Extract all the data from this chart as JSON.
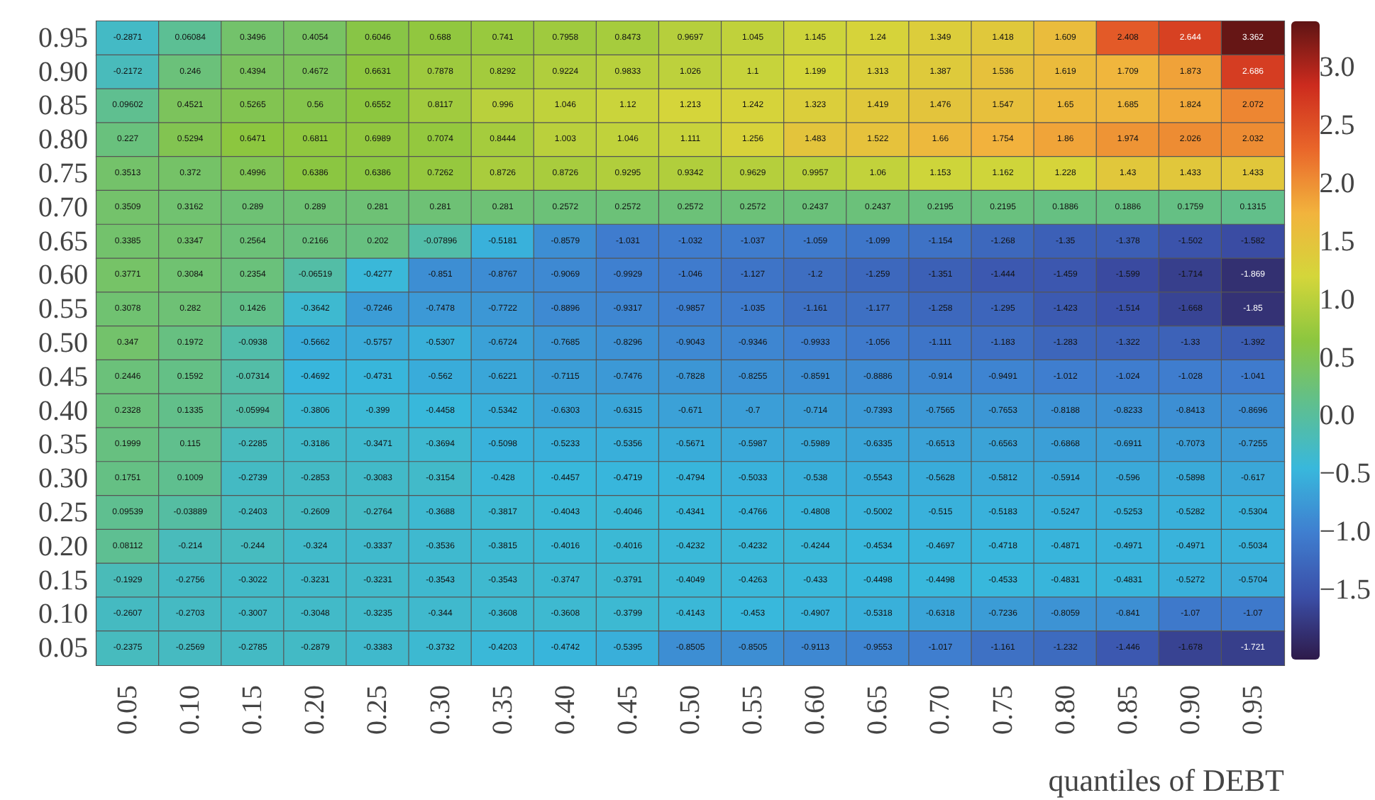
{
  "chart_data": {
    "type": "heatmap",
    "xlabel": "quantiles of DEBT",
    "categories": [
      "0.05",
      "0.10",
      "0.15",
      "0.20",
      "0.25",
      "0.30",
      "0.35",
      "0.40",
      "0.45",
      "0.50",
      "0.55",
      "0.60",
      "0.65",
      "0.70",
      "0.75",
      "0.80",
      "0.85",
      "0.90",
      "0.95"
    ],
    "y_categories": [
      "0.95",
      "0.90",
      "0.85",
      "0.80",
      "0.75",
      "0.70",
      "0.65",
      "0.60",
      "0.55",
      "0.50",
      "0.45",
      "0.40",
      "0.35",
      "0.30",
      "0.25",
      "0.20",
      "0.15",
      "0.10",
      "0.05"
    ],
    "cells": [
      [
        -0.2871,
        0.06084,
        0.3496,
        0.4054,
        0.6046,
        0.688,
        0.741,
        0.7958,
        0.8473,
        0.9697,
        1.045,
        1.145,
        1.24,
        1.349,
        1.418,
        1.609,
        2.408,
        2.644,
        3.362
      ],
      [
        -0.2172,
        0.246,
        0.4394,
        0.4672,
        0.6631,
        0.7878,
        0.8292,
        0.9224,
        0.9833,
        1.026,
        1.1,
        1.199,
        1.313,
        1.387,
        1.536,
        1.619,
        1.709,
        1.873,
        2.686
      ],
      [
        0.09602,
        0.4521,
        0.5265,
        0.56,
        0.6552,
        0.8117,
        0.996,
        1.046,
        1.12,
        1.213,
        1.242,
        1.323,
        1.419,
        1.476,
        1.547,
        1.65,
        1.685,
        1.824,
        2.072
      ],
      [
        0.227,
        0.5294,
        0.6471,
        0.6811,
        0.6989,
        0.7074,
        0.8444,
        1.003,
        1.046,
        1.111,
        1.256,
        1.483,
        1.522,
        1.66,
        1.754,
        1.86,
        1.974,
        2.026,
        2.032
      ],
      [
        0.3513,
        0.372,
        0.4996,
        0.6386,
        0.6386,
        0.7262,
        0.8726,
        0.8726,
        0.9295,
        0.9342,
        0.9629,
        0.9957,
        1.06,
        1.153,
        1.162,
        1.228,
        1.43,
        1.433,
        1.433
      ],
      [
        0.3509,
        0.3162,
        0.289,
        0.289,
        0.281,
        0.281,
        0.281,
        0.2572,
        0.2572,
        0.2572,
        0.2572,
        0.2437,
        0.2437,
        0.2195,
        0.2195,
        0.1886,
        0.1886,
        0.1759,
        0.1315
      ],
      [
        0.3385,
        0.3347,
        0.2564,
        0.2166,
        0.202,
        -0.07896,
        -0.5181,
        -0.8579,
        -1.031,
        -1.032,
        -1.037,
        -1.059,
        -1.099,
        -1.154,
        -1.268,
        -1.35,
        -1.378,
        -1.502,
        -1.582
      ],
      [
        0.3771,
        0.3084,
        0.2354,
        -0.06519,
        -0.4277,
        -0.851,
        -0.8767,
        -0.9069,
        -0.9929,
        -1.046,
        -1.127,
        -1.2,
        -1.259,
        -1.351,
        -1.444,
        -1.459,
        -1.599,
        -1.714,
        -1.869
      ],
      [
        0.3078,
        0.282,
        0.1426,
        -0.3642,
        -0.7246,
        -0.7478,
        -0.7722,
        -0.8896,
        -0.9317,
        -0.9857,
        -1.035,
        -1.161,
        -1.177,
        -1.258,
        -1.295,
        -1.423,
        -1.514,
        -1.668,
        -1.85
      ],
      [
        0.347,
        0.1972,
        -0.0938,
        -0.5662,
        -0.5757,
        -0.5307,
        -0.6724,
        -0.7685,
        -0.8296,
        -0.9043,
        -0.9346,
        -0.9933,
        -1.056,
        -1.111,
        -1.183,
        -1.283,
        -1.322,
        -1.33,
        -1.392
      ],
      [
        0.2446,
        0.1592,
        -0.07314,
        -0.4692,
        -0.4731,
        -0.562,
        -0.6221,
        -0.7115,
        -0.7476,
        -0.7828,
        -0.8255,
        -0.8591,
        -0.8886,
        -0.914,
        -0.9491,
        -1.012,
        -1.024,
        -1.028,
        -1.041
      ],
      [
        0.2328,
        0.1335,
        -0.05994,
        -0.3806,
        -0.399,
        -0.4458,
        -0.5342,
        -0.6303,
        -0.6315,
        -0.671,
        -0.7,
        -0.714,
        -0.7393,
        -0.7565,
        -0.7653,
        -0.8188,
        -0.8233,
        -0.8413,
        -0.8696
      ],
      [
        0.1999,
        0.115,
        -0.2285,
        -0.3186,
        -0.3471,
        -0.3694,
        -0.5098,
        -0.5233,
        -0.5356,
        -0.5671,
        -0.5987,
        -0.5989,
        -0.6335,
        -0.6513,
        -0.6563,
        -0.6868,
        -0.6911,
        -0.7073,
        -0.7255
      ],
      [
        0.1751,
        0.1009,
        -0.2739,
        -0.2853,
        -0.3083,
        -0.3154,
        -0.428,
        -0.4457,
        -0.4719,
        -0.4794,
        -0.5033,
        -0.538,
        -0.5543,
        -0.5628,
        -0.5812,
        -0.5914,
        -0.596,
        -0.5898,
        -0.617
      ],
      [
        0.09539,
        -0.03889,
        -0.2403,
        -0.2609,
        -0.2764,
        -0.3688,
        -0.3817,
        -0.4043,
        -0.4046,
        -0.4341,
        -0.4766,
        -0.4808,
        -0.5002,
        -0.515,
        -0.5183,
        -0.5247,
        -0.5253,
        -0.5282,
        -0.5304
      ],
      [
        0.08112,
        -0.214,
        -0.244,
        -0.324,
        -0.3337,
        -0.3536,
        -0.3815,
        -0.4016,
        -0.4016,
        -0.4232,
        -0.4232,
        -0.4244,
        -0.4534,
        -0.4697,
        -0.4718,
        -0.4871,
        -0.4971,
        -0.4971,
        -0.5034
      ],
      [
        -0.1929,
        -0.2756,
        -0.3022,
        -0.3231,
        -0.3231,
        -0.3543,
        -0.3543,
        -0.3747,
        -0.3791,
        -0.4049,
        -0.4263,
        -0.433,
        -0.4498,
        -0.4498,
        -0.4533,
        -0.4831,
        -0.4831,
        -0.5272,
        -0.5704
      ],
      [
        -0.2607,
        -0.2703,
        -0.3007,
        -0.3048,
        -0.3235,
        -0.344,
        -0.3608,
        -0.3608,
        -0.3799,
        -0.4143,
        -0.453,
        -0.4907,
        -0.5318,
        -0.6318,
        -0.7236,
        -0.8059,
        -0.841,
        -1.07,
        -1.07
      ],
      [
        -0.2375,
        -0.2569,
        -0.2785,
        -0.2879,
        -0.3383,
        -0.3732,
        -0.4203,
        -0.4742,
        -0.5395,
        -0.8505,
        -0.8505,
        -0.9113,
        -0.9553,
        -1.017,
        -1.161,
        -1.232,
        -1.446,
        -1.678,
        -1.721
      ]
    ],
    "data_labels": true,
    "clim": [
      -2.1,
      3.4
    ],
    "cticks": [
      {
        "value": -1.5,
        "label": "−1.5"
      },
      {
        "value": -1,
        "label": "−1.0"
      },
      {
        "value": -0.5,
        "label": "−0.5"
      },
      {
        "value": 0,
        "label": "0.0"
      },
      {
        "value": 0.5,
        "label": "0.5"
      },
      {
        "value": 1,
        "label": "1.0"
      },
      {
        "value": 1.5,
        "label": "1.5"
      },
      {
        "value": 2,
        "label": "2.0"
      },
      {
        "value": 2.5,
        "label": "2.5"
      },
      {
        "value": 3,
        "label": "3.0"
      }
    ]
  }
}
